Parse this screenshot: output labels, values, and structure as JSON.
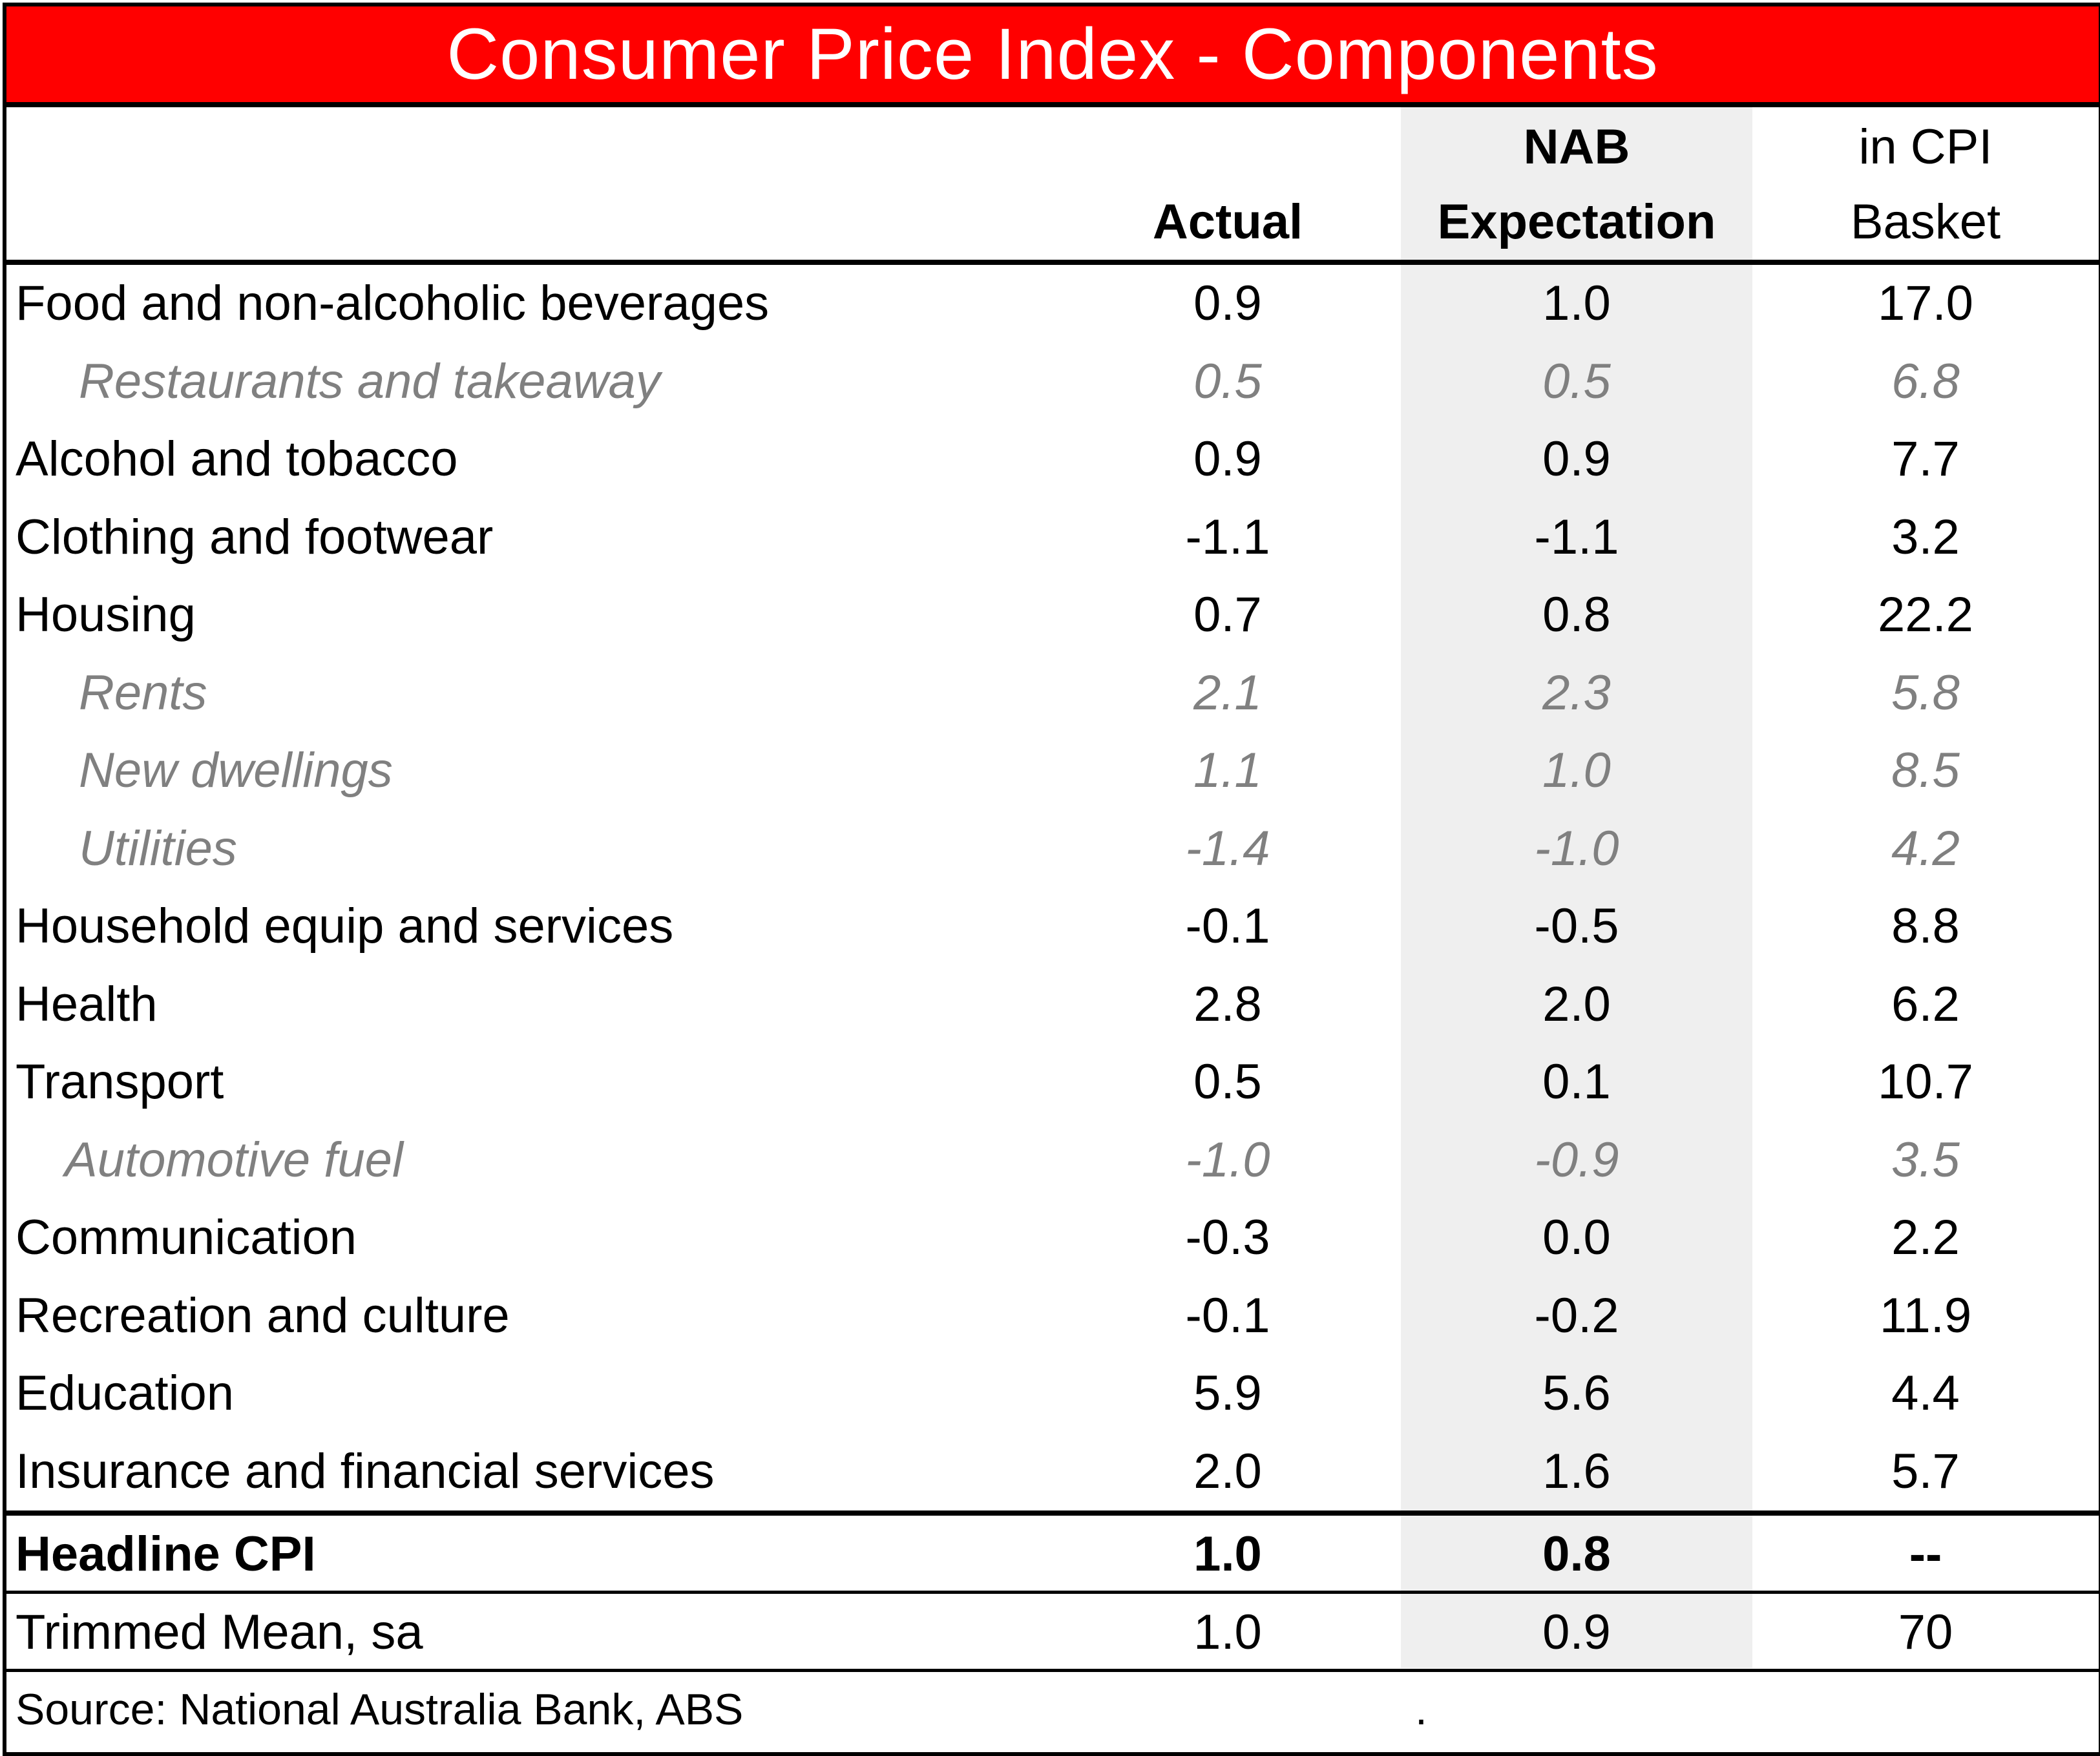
{
  "chart_data": {
    "type": "table",
    "title": "Consumer Price Index - Components",
    "columns": [
      {
        "key": "actual",
        "lines": [
          "",
          "Actual"
        ]
      },
      {
        "key": "nab",
        "lines": [
          "NAB",
          "Expectation"
        ]
      },
      {
        "key": "weight",
        "lines": [
          "in CPI",
          "Basket"
        ]
      }
    ],
    "rows": [
      {
        "label": "Food and non-alcoholic beverages",
        "actual": "0.9",
        "nab": "1.0",
        "weight": "17.0",
        "sub": false
      },
      {
        "label": "Restaurants and takeaway",
        "actual": "0.5",
        "nab": "0.5",
        "weight": "6.8",
        "sub": true
      },
      {
        "label": "Alcohol and tobacco",
        "actual": "0.9",
        "nab": "0.9",
        "weight": "7.7",
        "sub": false
      },
      {
        "label": "Clothing and footwear",
        "actual": "-1.1",
        "nab": "-1.1",
        "weight": "3.2",
        "sub": false
      },
      {
        "label": "Housing",
        "actual": "0.7",
        "nab": "0.8",
        "weight": "22.2",
        "sub": false
      },
      {
        "label": "Rents",
        "actual": "2.1",
        "nab": "2.3",
        "weight": "5.8",
        "sub": true
      },
      {
        "label": "New dwellings",
        "actual": "1.1",
        "nab": "1.0",
        "weight": "8.5",
        "sub": true
      },
      {
        "label": "Utilities",
        "actual": "-1.4",
        "nab": "-1.0",
        "weight": "4.2",
        "sub": true
      },
      {
        "label": "Household equip and services",
        "actual": "-0.1",
        "nab": "-0.5",
        "weight": "8.8",
        "sub": false
      },
      {
        "label": "Health",
        "actual": "2.8",
        "nab": "2.0",
        "weight": "6.2",
        "sub": false
      },
      {
        "label": "Transport",
        "actual": "0.5",
        "nab": "0.1",
        "weight": "10.7",
        "sub": false
      },
      {
        "label": "Automotive fuel",
        "actual": "-1.0",
        "nab": "-0.9",
        "weight": "3.5",
        "sub": true
      },
      {
        "label": "Communication",
        "actual": "-0.3",
        "nab": "0.0",
        "weight": "2.2",
        "sub": false
      },
      {
        "label": "Recreation and culture",
        "actual": "-0.1",
        "nab": "-0.2",
        "weight": "11.9",
        "sub": false
      },
      {
        "label": "Education",
        "actual": "5.9",
        "nab": "5.6",
        "weight": "4.4",
        "sub": false
      },
      {
        "label": "Insurance and financial services",
        "actual": "2.0",
        "nab": "1.6",
        "weight": "5.7",
        "sub": false
      }
    ],
    "headline": {
      "label": "Headline CPI",
      "actual": "1.0",
      "nab": "0.8",
      "weight": "--"
    },
    "trimmed": {
      "label": "Trimmed Mean, sa",
      "actual": "1.0",
      "nab": "0.9",
      "weight": "70"
    },
    "source": "Source: National Australia Bank, ABS",
    "source_mark": ".",
    "colors": {
      "title_bg": "#ff0000",
      "title_text": "#ffffff",
      "shaded_column": "#efefef",
      "sub_row_text": "#808080"
    }
  }
}
